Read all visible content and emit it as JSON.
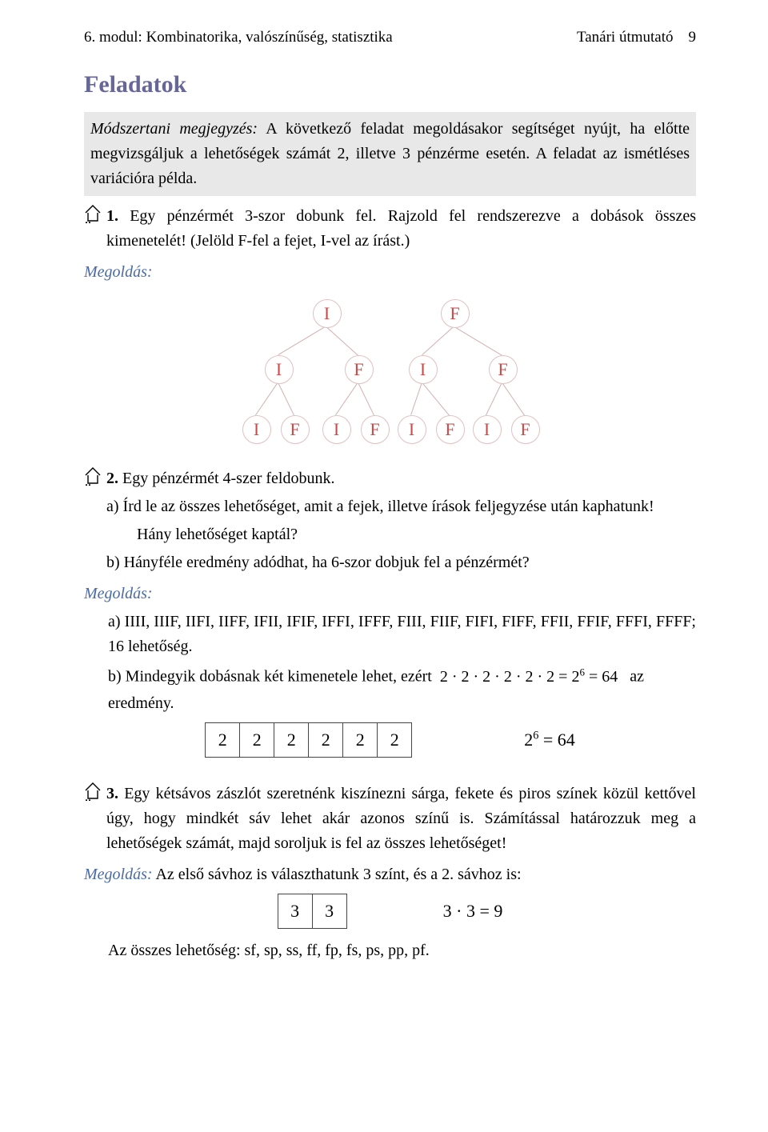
{
  "header": {
    "left": "6. modul: Kombinatorika, valószínűség, statisztika",
    "right": "Tanári útmutató",
    "page": "9"
  },
  "title": "Feladatok",
  "note": {
    "lead_italic": "Módszertani megjegyzés:",
    "rest": " A következő feladat megoldásakor segítséget nyújt, ha előtte megvizsgáljuk a lehetőségek számát 2, illetve 3 pénzérme esetén. A feladat az ismétléses variációra példa."
  },
  "task1": {
    "num": "1.",
    "text": " Egy pénzérmét 3-szor dobunk fel. Rajzold fel rendszerezve a dobások összes kimenetelét! (Jelöld F-fel a fejet, I-vel az írást.)",
    "solution_label": "Megoldás:"
  },
  "tree": {
    "level1": [
      "I",
      "F"
    ],
    "level2": [
      "I",
      "F",
      "I",
      "F"
    ],
    "level3": [
      "I",
      "F",
      "I",
      "F",
      "I",
      "F",
      "I",
      "F"
    ],
    "node_border": "#e2c0c0",
    "node_text": "#c84a4a",
    "edge_color": "#d4b0b0"
  },
  "task2": {
    "num": "2.",
    "intro": " Egy pénzérmét 4-szer feldobunk.",
    "a": "a) Írd le az összes lehetőséget, amit a fejek, illetve írások feljegyzése után kaphatunk!",
    "a2": "Hány lehetőséget kaptál?",
    "b": "b) Hányféle eredmény adódhat, ha 6-szor dobjuk fel a pénzérmét?",
    "solution_label": "Megoldás:",
    "ans_a": "a) IIII, IIIF, IIFI, IIFF, IFII, IFIF, IFFI, IFFF, FIII, FIIF, FIFI, FIFF, FFII, FFIF, FFFI, FFFF; 16 lehetőség.",
    "ans_b_left": "b) Mindegyik dobásnak két kimenetele lehet, ezért",
    "ans_b_eq": "2 · 2 · 2 · 2 · 2 · 2 = 2",
    "ans_b_exp": "6",
    "ans_b_eq2": " = 64",
    "ans_b_tail": "az",
    "ans_b_line2": "eredmény.",
    "boxes": [
      "2",
      "2",
      "2",
      "2",
      "2",
      "2"
    ],
    "boxes_formula_lhs": "2",
    "boxes_formula_exp": "6",
    "boxes_formula_rhs": " = 64"
  },
  "task3": {
    "num": "3.",
    "text": " Egy kétsávos zászlót szeretnénk kiszínezni sárga, fekete és piros színek közül kettővel úgy, hogy mindkét sáv lehet akár azonos színű is. Számítással határozzuk meg a lehetőségek számát, majd soroljuk is fel az összes lehetőséget!",
    "solution_line": "Megoldás:",
    "solution_rest": " Az első sávhoz is választhatunk 3 színt, és a 2. sávhoz is:",
    "boxes": [
      "3",
      "3"
    ],
    "formula": "3 · 3 = 9",
    "list": "Az összes lehetőség: sf, sp, ss, ff, fp, fs, ps, pp, pf."
  },
  "colors": {
    "heading": "#666699",
    "greybox": "#e8e8e8",
    "blue": "#4a6aa8"
  }
}
